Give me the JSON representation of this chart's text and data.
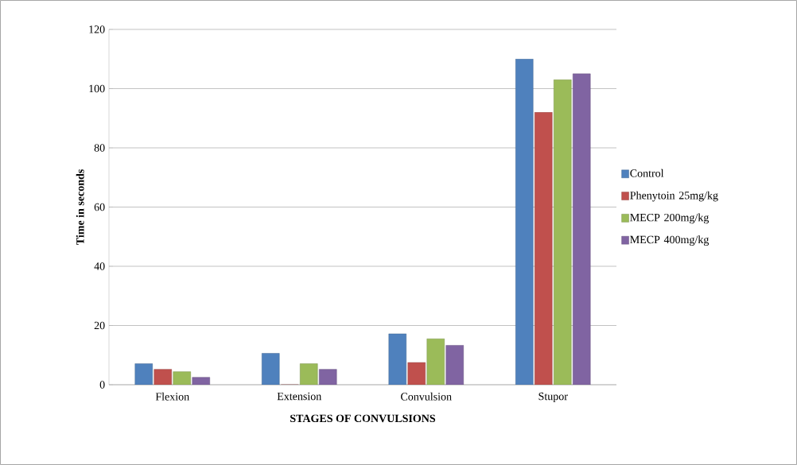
{
  "chart_data": {
    "type": "bar",
    "xlabel": "STAGES OF CONVULSIONS",
    "ylabel": "Time in seconds",
    "categories": [
      "Flexion",
      "Extension",
      "Convulsion",
      "Stupor"
    ],
    "series": [
      {
        "name": "Control",
        "color": "#4f81bd",
        "values": [
          7.1,
          10.6,
          17.2,
          110
        ]
      },
      {
        "name": "Phenytoin 25mg/kg",
        "color": "#c0504d",
        "values": [
          5.2,
          0,
          7.5,
          92
        ]
      },
      {
        "name": "MECP 200mg/kg",
        "color": "#9bbb59",
        "values": [
          4.4,
          7.1,
          15.5,
          103
        ]
      },
      {
        "name": "MECP 400mg/kg",
        "color": "#8064a2",
        "values": [
          2.5,
          5.2,
          13.3,
          105
        ]
      }
    ],
    "ylim": [
      0,
      120
    ],
    "yticks": [
      0,
      20,
      40,
      60,
      80,
      100,
      120
    ],
    "grid": "y",
    "legend": "right"
  }
}
